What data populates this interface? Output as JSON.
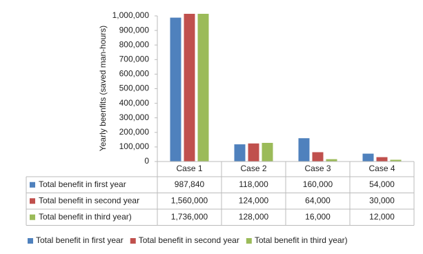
{
  "chart_data": {
    "type": "bar",
    "y_label": "Yearly beenfits (saved man-hours)",
    "categories": [
      "Case 1",
      "Case 2",
      "Case 3",
      "Case 4"
    ],
    "series": [
      {
        "name": "Total benefit in first year",
        "color": "#4f81bd",
        "values": [
          987840,
          118000,
          160000,
          54000
        ],
        "value_labels": [
          "987,840",
          "118,000",
          "160,000",
          "54,000"
        ]
      },
      {
        "name": "Total benefit in second year",
        "color": "#c0504d",
        "values": [
          1560000,
          124000,
          64000,
          30000
        ],
        "value_labels": [
          "1,560,000",
          "124,000",
          "64,000",
          "30,000"
        ]
      },
      {
        "name": "Total benefit in third year)",
        "color": "#9bbb59",
        "values": [
          1736000,
          128000,
          16000,
          12000
        ],
        "value_labels": [
          "1,736,000",
          "128,000",
          "16,000",
          "12,000"
        ]
      }
    ],
    "ylim": [
      0,
      1000000
    ],
    "yticks": [
      0,
      {
        "value": 100000,
        "label": "100,000"
      },
      {
        "value": 200000,
        "label": "200,000"
      },
      {
        "value": 300000,
        "label": "300,000"
      },
      {
        "value": 400000,
        "label": "400,000"
      },
      {
        "value": 500000,
        "label": "500,000"
      },
      {
        "value": 600000,
        "label": "600,000"
      },
      {
        "value": 700000,
        "label": "700,000"
      },
      {
        "value": 800000,
        "label": "800,000"
      },
      {
        "value": 900000,
        "label": "900,000"
      },
      {
        "value": 1000000,
        "label": "1,000,000"
      }
    ],
    "grid": false,
    "legend": "bottom"
  }
}
